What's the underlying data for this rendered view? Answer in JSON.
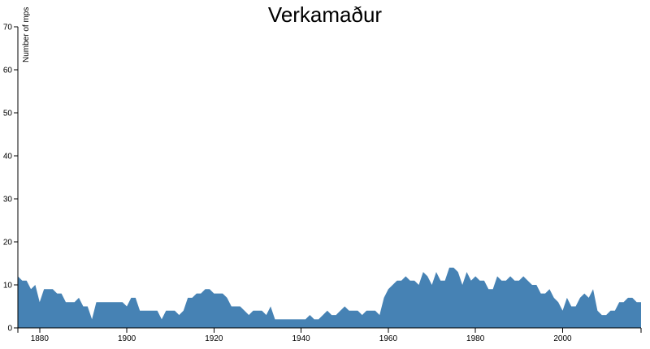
{
  "chart_data": {
    "type": "area",
    "title": "Verkamaður",
    "xlabel": "",
    "ylabel": "Number of mps",
    "xlim": [
      1875,
      2018
    ],
    "ylim": [
      0,
      70
    ],
    "x_ticks": [
      1880,
      1900,
      1920,
      1940,
      1960,
      1980,
      2000
    ],
    "y_ticks": [
      0,
      10,
      20,
      30,
      40,
      50,
      60,
      70
    ],
    "grid": false,
    "color": "#4682b4",
    "series": [
      {
        "x": [
          1875,
          1876,
          1877,
          1878,
          1879,
          1880,
          1881,
          1882,
          1883,
          1884,
          1885,
          1886,
          1887,
          1888,
          1889,
          1890,
          1891,
          1892,
          1893,
          1894,
          1895,
          1896,
          1897,
          1898,
          1899,
          1900,
          1901,
          1902,
          1903,
          1904,
          1905,
          1906,
          1907,
          1908,
          1909,
          1910,
          1911,
          1912,
          1913,
          1914,
          1915,
          1916,
          1917,
          1918,
          1919,
          1920,
          1921,
          1922,
          1923,
          1924,
          1925,
          1926,
          1927,
          1928,
          1929,
          1930,
          1931,
          1932,
          1933,
          1934,
          1935,
          1936,
          1937,
          1938,
          1939,
          1940,
          1941,
          1942,
          1943,
          1944,
          1945,
          1946,
          1947,
          1948,
          1949,
          1950,
          1951,
          1952,
          1953,
          1954,
          1955,
          1956,
          1957,
          1958,
          1959,
          1960,
          1961,
          1962,
          1963,
          1964,
          1965,
          1966,
          1967,
          1968,
          1969,
          1970,
          1971,
          1972,
          1973,
          1974,
          1975,
          1976,
          1977,
          1978,
          1979,
          1980,
          1981,
          1982,
          1983,
          1984,
          1985,
          1986,
          1987,
          1988,
          1989,
          1990,
          1991,
          1992,
          1993,
          1994,
          1995,
          1996,
          1997,
          1998,
          1999,
          2000,
          2001,
          2002,
          2003,
          2004,
          2005,
          2006,
          2007,
          2008,
          2009,
          2010,
          2011,
          2012,
          2013,
          2014,
          2015,
          2016,
          2017,
          2018
        ],
        "y": [
          12,
          11,
          11,
          9,
          10,
          6,
          9,
          9,
          9,
          8,
          8,
          6,
          6,
          6,
          7,
          5,
          5,
          2,
          6,
          6,
          6,
          6,
          6,
          6,
          6,
          5,
          7,
          7,
          4,
          4,
          4,
          4,
          4,
          2,
          4,
          4,
          4,
          3,
          4,
          7,
          7,
          8,
          8,
          9,
          9,
          8,
          8,
          8,
          7,
          5,
          5,
          5,
          4,
          3,
          4,
          4,
          4,
          3,
          5,
          2,
          2,
          2,
          2,
          2,
          2,
          2,
          2,
          3,
          2,
          2,
          3,
          4,
          3,
          3,
          4,
          5,
          4,
          4,
          4,
          3,
          4,
          4,
          4,
          3,
          7,
          9,
          10,
          11,
          11,
          12,
          11,
          11,
          10,
          13,
          12,
          10,
          13,
          11,
          11,
          14,
          14,
          13,
          10,
          13,
          11,
          12,
          11,
          11,
          9,
          9,
          12,
          11,
          11,
          12,
          11,
          11,
          12,
          11,
          10,
          10,
          8,
          8,
          9,
          7,
          6,
          4,
          7,
          5,
          5,
          7,
          8,
          7,
          9,
          4,
          3,
          3,
          4,
          4,
          6,
          6,
          7,
          7,
          6,
          6
        ]
      }
    ]
  }
}
